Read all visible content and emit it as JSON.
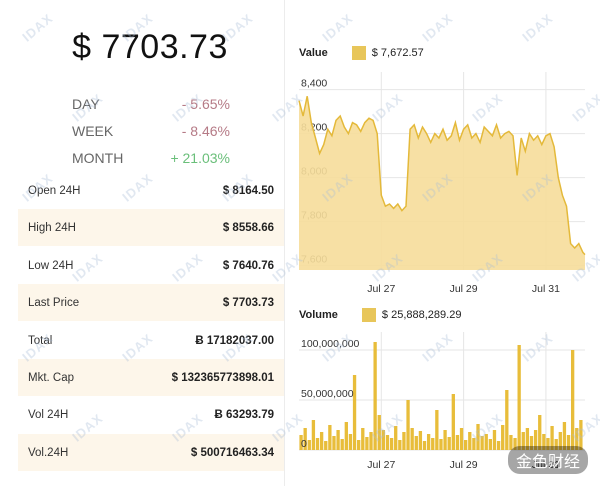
{
  "price": "$ 7703.73",
  "changes": [
    {
      "label": "DAY",
      "value": "- 5.65%",
      "trend": "neg"
    },
    {
      "label": "WEEK",
      "value": "- 8.46%",
      "trend": "neg"
    },
    {
      "label": "MONTH",
      "value": "+ 21.03%",
      "trend": "pos"
    }
  ],
  "stats": [
    {
      "label": "Open 24H",
      "value": "$ 8164.50"
    },
    {
      "label": "High 24H",
      "value": "$ 8558.66"
    },
    {
      "label": "Low 24H",
      "value": "$ 7640.76"
    },
    {
      "label": "Last Price",
      "value": "$ 7703.73"
    },
    {
      "label": "Total",
      "value": "Ƀ 17182037.00"
    },
    {
      "label": "Mkt. Cap",
      "value": "$ 132365773898.01"
    },
    {
      "label": "Vol 24H",
      "value": "Ƀ 63293.79"
    },
    {
      "label": "Vol.24H",
      "value": "$ 500716463.34"
    }
  ],
  "watermark": "IDAX",
  "corner_watermark": "金色财经",
  "colors": {
    "fill": "#f6dd9a",
    "line": "#e4b93a",
    "bar": "#e8bd3a"
  },
  "chart_data": [
    {
      "type": "area",
      "title": "Value",
      "legend_value": "$ 7,672.57",
      "x_ticks": [
        "Jul 27",
        "Jul 29",
        "Jul 31"
      ],
      "y_ticks": [
        "8,400",
        "8,200",
        "8,000",
        "7,800",
        "7,600"
      ],
      "y_tick_values": [
        8400,
        8200,
        8000,
        7800,
        7600
      ],
      "ylim": [
        7580,
        8480
      ],
      "x_tick_positions": [
        1.0,
        3.0,
        5.0
      ],
      "x_range": [
        -1.0,
        5.95
      ],
      "series": [
        {
          "x": [
            -1.0,
            -0.9,
            -0.8,
            -0.7,
            -0.6,
            -0.5,
            -0.4,
            -0.3,
            -0.2,
            -0.1,
            0.0,
            0.1,
            0.2,
            0.3,
            0.4,
            0.5,
            0.6,
            0.7,
            0.8,
            0.9,
            1.0,
            1.1,
            1.2,
            1.3,
            1.4,
            1.5,
            1.6,
            1.7,
            1.8,
            1.9,
            2.0,
            2.1,
            2.2,
            2.3,
            2.4,
            2.5,
            2.6,
            2.7,
            2.8,
            2.9,
            3.0,
            3.1,
            3.2,
            3.3,
            3.4,
            3.5,
            3.6,
            3.7,
            3.8,
            3.9,
            4.0,
            4.1,
            4.2,
            4.3,
            4.4,
            4.5,
            4.6,
            4.7,
            4.8,
            4.9,
            5.0,
            5.1,
            5.2,
            5.3,
            5.4,
            5.5,
            5.6,
            5.7,
            5.8,
            5.9,
            5.95
          ],
          "values": [
            8350,
            8280,
            8370,
            8250,
            8180,
            8110,
            8150,
            8220,
            8190,
            8260,
            8280,
            8230,
            8200,
            8250,
            8240,
            8210,
            8250,
            8270,
            8260,
            8200,
            7920,
            7870,
            7880,
            7860,
            7880,
            7850,
            7870,
            8220,
            8240,
            8180,
            8230,
            8200,
            8160,
            8200,
            8180,
            8220,
            8170,
            8190,
            8250,
            8170,
            8220,
            8240,
            8180,
            8200,
            8160,
            8230,
            8210,
            8190,
            8240,
            8180,
            8200,
            8210,
            8190,
            8010,
            8180,
            8120,
            8200,
            8170,
            8190,
            8150,
            8190,
            8200,
            8140,
            8000,
            7920,
            7870,
            7700,
            7680,
            7700,
            7660,
            7650
          ]
        }
      ]
    },
    {
      "type": "bar",
      "title": "Volume",
      "legend_value": "$ 25,888,289.29",
      "x_ticks": [
        "Jul 27",
        "Jul 29",
        "Jul 31"
      ],
      "y_ticks": [
        "100,000,000",
        "50,000,000",
        "0"
      ],
      "y_tick_values": [
        100000000,
        50000000,
        0
      ],
      "ylim": [
        0,
        118000000
      ],
      "x_tick_positions": [
        1.0,
        3.0,
        5.0
      ],
      "x_range": [
        -1.0,
        5.95
      ],
      "series": [
        {
          "x": [
            -0.95,
            -0.85,
            -0.75,
            -0.65,
            -0.55,
            -0.45,
            -0.35,
            -0.25,
            -0.15,
            -0.05,
            0.05,
            0.15,
            0.25,
            0.35,
            0.45,
            0.55,
            0.65,
            0.75,
            0.85,
            0.95,
            1.05,
            1.15,
            1.25,
            1.35,
            1.45,
            1.55,
            1.65,
            1.75,
            1.85,
            1.95,
            2.05,
            2.15,
            2.25,
            2.35,
            2.45,
            2.55,
            2.65,
            2.75,
            2.85,
            2.95,
            3.05,
            3.15,
            3.25,
            3.35,
            3.45,
            3.55,
            3.65,
            3.75,
            3.85,
            3.95,
            4.05,
            4.15,
            4.25,
            4.35,
            4.45,
            4.55,
            4.65,
            4.75,
            4.85,
            4.95,
            5.05,
            5.15,
            5.25,
            5.35,
            5.45,
            5.55,
            5.65,
            5.75,
            5.85
          ],
          "values": [
            15000000,
            22000000,
            10000000,
            30000000,
            12000000,
            18000000,
            9000000,
            25000000,
            14000000,
            20000000,
            11000000,
            28000000,
            16000000,
            75000000,
            10000000,
            22000000,
            13000000,
            18000000,
            108000000,
            35000000,
            20000000,
            15000000,
            12000000,
            24000000,
            10000000,
            18000000,
            50000000,
            22000000,
            14000000,
            19000000,
            9000000,
            16000000,
            12000000,
            40000000,
            11000000,
            20000000,
            13000000,
            56000000,
            15000000,
            22000000,
            10000000,
            18000000,
            12000000,
            26000000,
            14000000,
            16000000,
            11000000,
            20000000,
            9000000,
            25000000,
            60000000,
            15000000,
            12000000,
            105000000,
            18000000,
            22000000,
            14000000,
            20000000,
            35000000,
            16000000,
            12000000,
            24000000,
            11000000,
            18000000,
            28000000,
            15000000,
            100000000,
            22000000,
            30000000
          ]
        }
      ]
    }
  ]
}
